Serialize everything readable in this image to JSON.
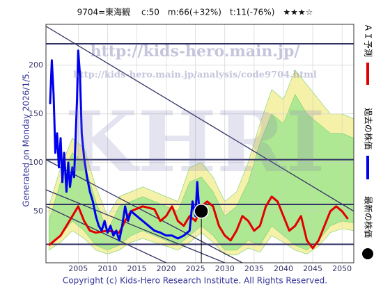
{
  "chart_data": {
    "type": "line",
    "title": "9704=東海観　 c:50　m:66(+32%)　t:11(-76%)　★★★☆",
    "left_note": "Generated on Monday 2026/1/5.",
    "footer": "Copyright (c) Kids-Hero Research Institute. All Rights Reserved.",
    "watermarks": [
      "http://kids-hero.main.jp/",
      "http://kids-hero.main.jp/analysis/code9704.html",
      "KHRI"
    ],
    "xlim": [
      1999.5,
      2052
    ],
    "ylim": [
      -3,
      242
    ],
    "xticks": [
      2005,
      2010,
      2015,
      2020,
      2025,
      2030,
      2035,
      2040,
      2045,
      2050
    ],
    "yticks": [
      50,
      100,
      150,
      200
    ],
    "grid": true,
    "bands": [
      {
        "color": "#f6f0a0",
        "x": [
          2000,
          2002,
          2004,
          2006,
          2008,
          2010,
          2012,
          2014,
          2016,
          2018,
          2020,
          2022,
          2024,
          2026,
          2028,
          2030,
          2032,
          2034,
          2036,
          2038,
          2040,
          2042,
          2044,
          2046,
          2048,
          2050,
          2052
        ],
        "upper": [
          55,
          95,
          125,
          115,
          75,
          45,
          65,
          70,
          75,
          70,
          65,
          60,
          95,
          100,
          85,
          60,
          70,
          100,
          140,
          175,
          165,
          195,
          180,
          165,
          150,
          150,
          145
        ],
        "lower": [
          10,
          18,
          30,
          22,
          10,
          6,
          10,
          18,
          22,
          18,
          14,
          10,
          18,
          28,
          18,
          5,
          5,
          12,
          8,
          25,
          18,
          10,
          6,
          14,
          28,
          32,
          30
        ]
      },
      {
        "color": "#a8e890",
        "x": [
          2000,
          2002,
          2004,
          2006,
          2008,
          2010,
          2012,
          2014,
          2016,
          2018,
          2020,
          2022,
          2024,
          2026,
          2028,
          2030,
          2032,
          2034,
          2036,
          2038,
          2040,
          2042,
          2044,
          2046,
          2048,
          2050,
          2052
        ],
        "upper": [
          40,
          80,
          110,
          100,
          60,
          30,
          55,
          60,
          65,
          60,
          55,
          50,
          80,
          85,
          70,
          45,
          55,
          80,
          120,
          150,
          140,
          170,
          150,
          140,
          130,
          130,
          125
        ],
        "lower": [
          15,
          25,
          40,
          30,
          15,
          10,
          15,
          25,
          30,
          25,
          20,
          15,
          25,
          35,
          25,
          10,
          10,
          20,
          15,
          35,
          25,
          15,
          10,
          20,
          35,
          40,
          38
        ]
      }
    ],
    "hline_color": "#333366",
    "hlines": [
      222,
      103,
      57,
      16
    ],
    "trendline_color": "#333366",
    "trendlines": [
      {
        "x": [
          1999.5,
          2052
        ],
        "values": [
          240,
          50
        ]
      },
      {
        "x": [
          1999.5,
          2033
        ],
        "values": [
          103,
          -3
        ]
      },
      {
        "x": [
          1999.5,
          2030
        ],
        "values": [
          72,
          -3
        ]
      },
      {
        "x": [
          1999.5,
          2020
        ],
        "values": [
          55,
          -3
        ]
      }
    ],
    "series": [
      {
        "name": "ＡＩ予測",
        "color": "#e00000",
        "x": [
          2000,
          2001,
          2002,
          2003,
          2004,
          2005,
          2006,
          2007,
          2008,
          2010,
          2012,
          2013,
          2014,
          2016,
          2018,
          2019,
          2020,
          2021,
          2022,
          2023,
          2024,
          2025,
          2026,
          2027,
          2028,
          2029,
          2030,
          2031,
          2032,
          2033,
          2034,
          2035,
          2036,
          2037,
          2038,
          2039,
          2040,
          2041,
          2042,
          2043,
          2044,
          2045,
          2046,
          2047,
          2048,
          2049,
          2050,
          2051
        ],
        "values": [
          15,
          20,
          25,
          35,
          45,
          55,
          40,
          30,
          28,
          30,
          28,
          40,
          50,
          55,
          52,
          40,
          45,
          55,
          40,
          35,
          45,
          40,
          55,
          60,
          55,
          35,
          25,
          20,
          30,
          45,
          40,
          30,
          35,
          55,
          65,
          60,
          45,
          30,
          35,
          45,
          20,
          12,
          20,
          35,
          50,
          55,
          50,
          42
        ]
      },
      {
        "name": "過去の株価",
        "color": "#0000ee",
        "x": [
          2000.2,
          2000.5,
          2000.8,
          2001.1,
          2001.4,
          2001.7,
          2002,
          2002.3,
          2002.6,
          2003,
          2003.3,
          2003.6,
          2004,
          2004.3,
          2004.8,
          2005,
          2005.3,
          2005.6,
          2006,
          2006.5,
          2007,
          2007.5,
          2008,
          2008.5,
          2009,
          2009.5,
          2010,
          2010.5,
          2011,
          2011.5,
          2012,
          2012.5,
          2013,
          2013.5,
          2014,
          2015,
          2016,
          2017,
          2018,
          2019,
          2020,
          2021,
          2022,
          2023,
          2024,
          2024.5,
          2025,
          2025.3,
          2025.6,
          2026
        ],
        "values": [
          160,
          205,
          170,
          110,
          130,
          95,
          125,
          80,
          110,
          70,
          100,
          75,
          95,
          85,
          165,
          215,
          190,
          130,
          105,
          85,
          70,
          60,
          45,
          35,
          30,
          40,
          28,
          35,
          25,
          30,
          20,
          35,
          55,
          40,
          50,
          45,
          40,
          35,
          30,
          28,
          25,
          25,
          22,
          25,
          30,
          60,
          45,
          80,
          55,
          50
        ]
      }
    ],
    "latest": {
      "name": "最新の株価",
      "color": "#000000",
      "x": 2026,
      "value": 50
    }
  }
}
